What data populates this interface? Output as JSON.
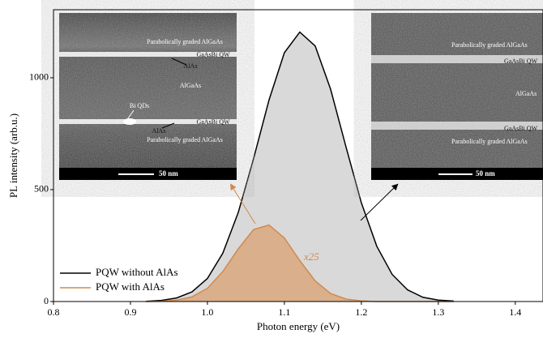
{
  "chart_data": {
    "type": "line",
    "x_label": "Photon energy (eV)",
    "y_label": "PL intensity (arb.u.)",
    "x": [
      0.92,
      0.94,
      0.96,
      0.98,
      1.0,
      1.02,
      1.04,
      1.06,
      1.08,
      1.1,
      1.12,
      1.14,
      1.16,
      1.18,
      1.2,
      1.22,
      1.24,
      1.26,
      1.28,
      1.3,
      1.32
    ],
    "series": [
      {
        "name": "PQW without AlAs",
        "color": "#000000",
        "fill": "#d9d9d9",
        "values": [
          1,
          5,
          16,
          43,
          103,
          216,
          397,
          639,
          900,
          1112,
          1204,
          1142,
          949,
          691,
          441,
          247,
          121,
          52,
          19,
          6,
          2
        ]
      },
      {
        "name": "PQW with AlAs",
        "color": "#d08a4e",
        "fill": "#d9aa82",
        "values": [
          0,
          1,
          6,
          21,
          59,
          134,
          235,
          322,
          342,
          284,
          183,
          92,
          36,
          11,
          3,
          0,
          0,
          0,
          0,
          0,
          0
        ]
      }
    ],
    "xlim": [
      0.8,
      1.436
    ],
    "ylim": [
      0,
      1304
    ],
    "xticks": [
      {
        "value": 0.8,
        "label": "0.8"
      },
      0.9,
      {
        "value": 1,
        "label": "1.0"
      },
      1.1,
      1.2,
      1.3,
      1.4
    ],
    "yticks": [
      0,
      500,
      1000
    ],
    "annotation": "x25",
    "insets": [
      {
        "labels": [
          "Parabolically graded AlGaAs",
          "GaAsBi QW",
          "AlAs",
          "AlGaAs",
          "Bi QDs",
          "GaAsBi QW",
          "AlAs",
          "Parabolically graded AlGaAs"
        ],
        "scale_bar": "50 nm"
      },
      {
        "labels": [
          "Parabolically graded AlGaAs",
          "GaAsBi QW",
          "AlGaAs",
          "GaAsBi QW",
          "Parabolically graded AlGaAs"
        ],
        "scale_bar": "50 nm"
      }
    ]
  }
}
